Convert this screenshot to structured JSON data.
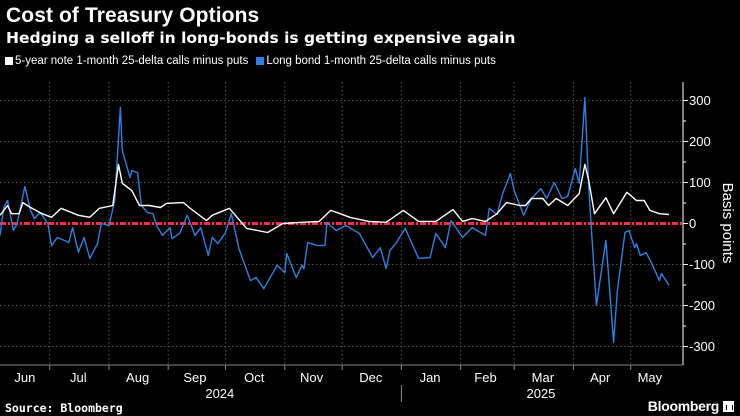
{
  "header": {
    "title": "Cost of Treasury Options",
    "subtitle": "Hedging a selloff in long-bonds is getting expensive again"
  },
  "footer": {
    "source": "Source: Bloomberg",
    "logo": "Bloomberg"
  },
  "chart_data": {
    "type": "line",
    "title": "Cost of Treasury Options",
    "subtitle": "Hedging a selloff in long-bonds is getting expensive again",
    "ylabel": "Basis points",
    "xlabel": "",
    "ylim": [
      -345,
      345
    ],
    "xlim": [
      "2024-06-05",
      "2025-05-21"
    ],
    "yticks": [
      300,
      200,
      100,
      0,
      -100,
      -200,
      -300
    ],
    "ytick_labels": [
      "300",
      "200",
      "100",
      "0",
      "-100",
      "-200",
      "-300"
    ],
    "y_axis_side": "right",
    "xticks": [
      {
        "label": "Jun",
        "date": "2024-06-18"
      },
      {
        "label": "Jul",
        "date": "2024-07-16"
      },
      {
        "label": "Aug",
        "date": "2024-08-16"
      },
      {
        "label": "Sep",
        "date": "2024-09-15"
      },
      {
        "label": "Oct",
        "date": "2024-10-16"
      },
      {
        "label": "Nov",
        "date": "2024-11-15"
      },
      {
        "label": "Dec",
        "date": "2024-12-16"
      },
      {
        "label": "Jan",
        "date": "2025-01-16"
      },
      {
        "label": "Feb",
        "date": "2025-02-14"
      },
      {
        "label": "Mar",
        "date": "2025-03-16"
      },
      {
        "label": "Apr",
        "date": "2025-04-15"
      },
      {
        "label": "May",
        "date": "2025-05-11"
      }
    ],
    "month_gridlines": [
      "2024-07-01",
      "2024-08-01",
      "2024-09-01",
      "2024-10-01",
      "2024-11-01",
      "2024-12-01",
      "2025-01-01",
      "2025-02-01",
      "2025-03-01",
      "2025-04-01",
      "2025-05-01"
    ],
    "year_labels": [
      {
        "label": "2024",
        "date": "2024-09-28"
      },
      {
        "label": "2025",
        "date": "2025-03-15"
      }
    ],
    "year_divider": "2025-01-01",
    "grid": true,
    "legend_position": "top-left",
    "reference_line": {
      "value": 0,
      "color": "#ff2a4a",
      "style": "dash-dot"
    },
    "series": [
      {
        "name": "5-year note 1-month 25-delta calls minus puts",
        "color": "#ffffff",
        "points": [
          [
            "2024-06-05",
            20
          ],
          [
            "2024-06-09",
            44
          ],
          [
            "2024-06-11",
            24
          ],
          [
            "2024-06-15",
            24
          ],
          [
            "2024-06-17",
            51
          ],
          [
            "2024-06-21",
            39
          ],
          [
            "2024-06-27",
            24
          ],
          [
            "2024-07-02",
            15
          ],
          [
            "2024-07-07",
            37
          ],
          [
            "2024-07-16",
            20
          ],
          [
            "2024-07-22",
            15
          ],
          [
            "2024-07-27",
            37
          ],
          [
            "2024-08-03",
            44
          ],
          [
            "2024-08-06",
            144
          ],
          [
            "2024-08-08",
            98
          ],
          [
            "2024-08-13",
            80
          ],
          [
            "2024-08-17",
            44
          ],
          [
            "2024-08-22",
            44
          ],
          [
            "2024-08-28",
            39
          ],
          [
            "2024-08-31",
            49
          ],
          [
            "2024-09-09",
            51
          ],
          [
            "2024-09-12",
            39
          ],
          [
            "2024-09-21",
            7
          ],
          [
            "2024-09-24",
            20
          ],
          [
            "2024-10-03",
            37
          ],
          [
            "2024-10-12",
            -12
          ],
          [
            "2024-10-23",
            -22
          ],
          [
            "2024-10-31",
            0
          ],
          [
            "2024-11-10",
            3
          ],
          [
            "2024-11-19",
            5
          ],
          [
            "2024-11-25",
            32
          ],
          [
            "2024-11-30",
            24
          ],
          [
            "2024-12-05",
            15
          ],
          [
            "2024-12-15",
            5
          ],
          [
            "2024-12-24",
            3
          ],
          [
            "2025-01-02",
            32
          ],
          [
            "2025-01-10",
            5
          ],
          [
            "2025-01-19",
            5
          ],
          [
            "2025-01-28",
            34
          ],
          [
            "2025-02-02",
            5
          ],
          [
            "2025-02-07",
            12
          ],
          [
            "2025-02-14",
            5
          ],
          [
            "2025-02-20",
            24
          ],
          [
            "2025-02-25",
            51
          ],
          [
            "2025-03-04",
            44
          ],
          [
            "2025-03-07",
            44
          ],
          [
            "2025-03-10",
            61
          ],
          [
            "2025-03-16",
            61
          ],
          [
            "2025-03-19",
            44
          ],
          [
            "2025-03-23",
            61
          ],
          [
            "2025-03-29",
            44
          ],
          [
            "2025-04-04",
            73
          ],
          [
            "2025-04-07",
            144
          ],
          [
            "2025-04-09",
            105
          ],
          [
            "2025-04-12",
            24
          ],
          [
            "2025-04-18",
            63
          ],
          [
            "2025-04-22",
            24
          ],
          [
            "2025-04-29",
            76
          ],
          [
            "2025-05-04",
            56
          ],
          [
            "2025-05-08",
            56
          ],
          [
            "2025-05-11",
            32
          ],
          [
            "2025-05-16",
            24
          ],
          [
            "2025-05-21",
            22
          ]
        ]
      },
      {
        "name": "Long bond 1-month 25-delta calls minus puts",
        "color": "#2f7fe0",
        "points": [
          [
            "2024-06-05",
            -29
          ],
          [
            "2024-06-07",
            39
          ],
          [
            "2024-06-09",
            56
          ],
          [
            "2024-06-12",
            -17
          ],
          [
            "2024-06-14",
            0
          ],
          [
            "2024-06-18",
            90
          ],
          [
            "2024-06-21",
            32
          ],
          [
            "2024-06-23",
            12
          ],
          [
            "2024-06-26",
            27
          ],
          [
            "2024-06-30",
            0
          ],
          [
            "2024-07-02",
            -54
          ],
          [
            "2024-07-05",
            -34
          ],
          [
            "2024-07-11",
            -46
          ],
          [
            "2024-07-13",
            -10
          ],
          [
            "2024-07-16",
            -70
          ],
          [
            "2024-07-19",
            -34
          ],
          [
            "2024-07-22",
            -85
          ],
          [
            "2024-07-26",
            -49
          ],
          [
            "2024-07-28",
            0
          ],
          [
            "2024-08-01",
            -5
          ],
          [
            "2024-08-04",
            56
          ],
          [
            "2024-08-07",
            283
          ],
          [
            "2024-08-08",
            178
          ],
          [
            "2024-08-12",
            112
          ],
          [
            "2024-08-13",
            129
          ],
          [
            "2024-08-16",
            124
          ],
          [
            "2024-08-18",
            44
          ],
          [
            "2024-08-21",
            27
          ],
          [
            "2024-08-24",
            24
          ],
          [
            "2024-08-26",
            -5
          ],
          [
            "2024-08-29",
            -29
          ],
          [
            "2024-09-02",
            -10
          ],
          [
            "2024-09-03",
            -37
          ],
          [
            "2024-09-07",
            -24
          ],
          [
            "2024-09-11",
            20
          ],
          [
            "2024-09-15",
            -29
          ],
          [
            "2024-09-18",
            -10
          ],
          [
            "2024-09-22",
            -78
          ],
          [
            "2024-09-24",
            -34
          ],
          [
            "2024-09-27",
            -49
          ],
          [
            "2024-10-01",
            -22
          ],
          [
            "2024-10-04",
            24
          ],
          [
            "2024-10-08",
            -61
          ],
          [
            "2024-10-14",
            -139
          ],
          [
            "2024-10-17",
            -132
          ],
          [
            "2024-10-21",
            -159
          ],
          [
            "2024-10-28",
            -102
          ],
          [
            "2024-11-01",
            -120
          ],
          [
            "2024-11-02",
            -73
          ],
          [
            "2024-11-07",
            -132
          ],
          [
            "2024-11-10",
            -102
          ],
          [
            "2024-11-11",
            -110
          ],
          [
            "2024-11-13",
            -46
          ],
          [
            "2024-11-18",
            -54
          ],
          [
            "2024-11-22",
            -54
          ],
          [
            "2024-11-23",
            2
          ],
          [
            "2024-11-28",
            -17
          ],
          [
            "2024-12-03",
            -5
          ],
          [
            "2024-12-10",
            -24
          ],
          [
            "2024-12-17",
            -83
          ],
          [
            "2024-12-21",
            -59
          ],
          [
            "2024-12-24",
            -110
          ],
          [
            "2024-12-26",
            -66
          ],
          [
            "2024-12-29",
            -49
          ],
          [
            "2025-01-03",
            -12
          ],
          [
            "2025-01-10",
            -85
          ],
          [
            "2025-01-16",
            -83
          ],
          [
            "2025-01-19",
            -24
          ],
          [
            "2025-01-24",
            -59
          ],
          [
            "2025-01-27",
            7
          ],
          [
            "2025-02-02",
            -34
          ],
          [
            "2025-02-07",
            -10
          ],
          [
            "2025-02-14",
            -29
          ],
          [
            "2025-02-16",
            37
          ],
          [
            "2025-02-20",
            22
          ],
          [
            "2025-02-23",
            73
          ],
          [
            "2025-02-27",
            122
          ],
          [
            "2025-03-01",
            80
          ],
          [
            "2025-03-06",
            20
          ],
          [
            "2025-03-10",
            61
          ],
          [
            "2025-03-15",
            85
          ],
          [
            "2025-03-18",
            61
          ],
          [
            "2025-03-22",
            100
          ],
          [
            "2025-03-26",
            61
          ],
          [
            "2025-03-29",
            66
          ],
          [
            "2025-04-02",
            134
          ],
          [
            "2025-04-04",
            98
          ],
          [
            "2025-04-07",
            307
          ],
          [
            "2025-04-09",
            88
          ],
          [
            "2025-04-13",
            -200
          ],
          [
            "2025-04-18",
            -41
          ],
          [
            "2025-04-22",
            -290
          ],
          [
            "2025-04-24",
            -163
          ],
          [
            "2025-04-28",
            -22
          ],
          [
            "2025-04-30",
            -17
          ],
          [
            "2025-05-03",
            -59
          ],
          [
            "2025-05-04",
            -49
          ],
          [
            "2025-05-06",
            -78
          ],
          [
            "2025-05-09",
            -71
          ],
          [
            "2025-05-12",
            -98
          ],
          [
            "2025-05-16",
            -139
          ],
          [
            "2025-05-17",
            -122
          ],
          [
            "2025-05-21",
            -151
          ]
        ]
      }
    ]
  }
}
